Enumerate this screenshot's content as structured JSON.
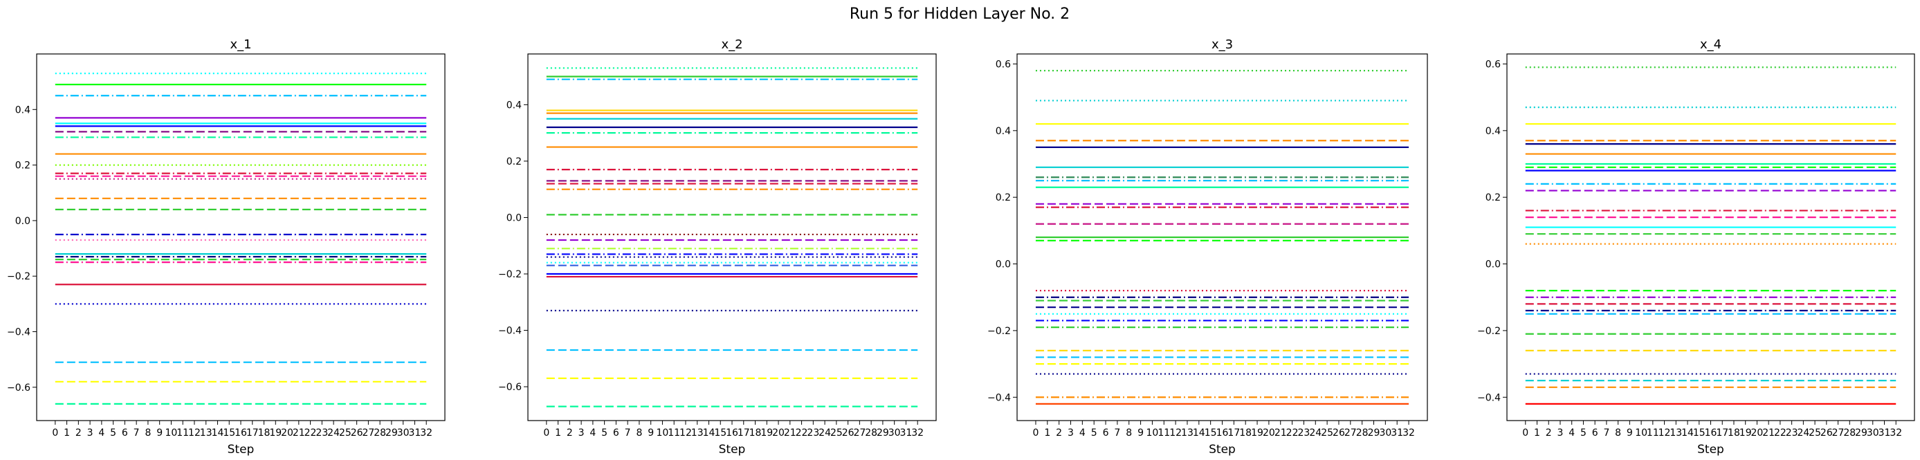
{
  "figure": {
    "title": "Run 5 for Hidden Layer No. 2"
  },
  "chart_data": [
    {
      "type": "line",
      "title": "x_1",
      "xlabel": "Step",
      "ylabel": "",
      "x": [
        0,
        1,
        2,
        3,
        4,
        5,
        6,
        7,
        8,
        9,
        10,
        11,
        12,
        13,
        14,
        15,
        16,
        17,
        18,
        19,
        20,
        21,
        22,
        23,
        24,
        25,
        26,
        27,
        28,
        29,
        30,
        31,
        32
      ],
      "xlim": [
        -1.6,
        33.6
      ],
      "ylim": [
        -0.72,
        0.6
      ],
      "yticks": [
        -0.6,
        -0.4,
        -0.2,
        0.0,
        0.2,
        0.4
      ],
      "ytick_labels": [
        "−0.6",
        "−0.4",
        "−0.2",
        "0.0",
        "0.2",
        "0.4"
      ],
      "grid": false,
      "series": [
        {
          "value": 0.53,
          "color": "#00ffff",
          "style": "dotted"
        },
        {
          "value": 0.49,
          "color": "#00ff00",
          "style": "solid"
        },
        {
          "value": 0.45,
          "color": "#00bfff",
          "style": "dashdot"
        },
        {
          "value": 0.37,
          "color": "#9400d3",
          "style": "solid"
        },
        {
          "value": 0.35,
          "color": "#00ffff",
          "style": "solid"
        },
        {
          "value": 0.34,
          "color": "#0000ff",
          "style": "solid"
        },
        {
          "value": 0.32,
          "color": "#800080",
          "style": "dashed"
        },
        {
          "value": 0.3,
          "color": "#00fa9a",
          "style": "dashdot"
        },
        {
          "value": 0.24,
          "color": "#ff8c00",
          "style": "solid"
        },
        {
          "value": 0.2,
          "color": "#7cfc00",
          "style": "dotted"
        },
        {
          "value": 0.17,
          "color": "#dc143c",
          "style": "dashdot"
        },
        {
          "value": 0.16,
          "color": "#ff1493",
          "style": "dashed"
        },
        {
          "value": 0.15,
          "color": "#c71585",
          "style": "dotted"
        },
        {
          "value": 0.08,
          "color": "#ff8c00",
          "style": "dashed"
        },
        {
          "value": 0.04,
          "color": "#32cd32",
          "style": "dashed"
        },
        {
          "value": -0.05,
          "color": "#0000cd",
          "style": "dashdot"
        },
        {
          "value": -0.07,
          "color": "#ff69b4",
          "style": "dotted"
        },
        {
          "value": -0.12,
          "color": "#00ced1",
          "style": "solid"
        },
        {
          "value": -0.13,
          "color": "#000080",
          "style": "dashdot"
        },
        {
          "value": -0.14,
          "color": "#32cd32",
          "style": "dashed"
        },
        {
          "value": -0.15,
          "color": "#ff1493",
          "style": "dashdot"
        },
        {
          "value": -0.23,
          "color": "#dc143c",
          "style": "solid"
        },
        {
          "value": -0.3,
          "color": "#0000cd",
          "style": "dotted"
        },
        {
          "value": -0.51,
          "color": "#00bfff",
          "style": "dashed"
        },
        {
          "value": -0.58,
          "color": "#ffff00",
          "style": "dashed"
        },
        {
          "value": -0.66,
          "color": "#00fa9a",
          "style": "dashed"
        }
      ]
    },
    {
      "type": "line",
      "title": "x_2",
      "xlabel": "Step",
      "ylabel": "",
      "x": [
        0,
        1,
        2,
        3,
        4,
        5,
        6,
        7,
        8,
        9,
        10,
        11,
        12,
        13,
        14,
        15,
        16,
        17,
        18,
        19,
        20,
        21,
        22,
        23,
        24,
        25,
        26,
        27,
        28,
        29,
        30,
        31,
        32
      ],
      "xlim": [
        -1.6,
        33.6
      ],
      "ylim": [
        -0.72,
        0.58
      ],
      "yticks": [
        -0.6,
        -0.4,
        -0.2,
        0.0,
        0.2,
        0.4
      ],
      "ytick_labels": [
        "−0.6",
        "−0.4",
        "−0.2",
        "0.0",
        "0.2",
        "0.4"
      ],
      "grid": false,
      "series": [
        {
          "value": 0.53,
          "color": "#00fa9a",
          "style": "dotted"
        },
        {
          "value": 0.5,
          "color": "#32cd32",
          "style": "solid"
        },
        {
          "value": 0.49,
          "color": "#00bfff",
          "style": "dashdot"
        },
        {
          "value": 0.38,
          "color": "#ffd700",
          "style": "solid"
        },
        {
          "value": 0.37,
          "color": "#ff8c00",
          "style": "solid"
        },
        {
          "value": 0.35,
          "color": "#00ced1",
          "style": "solid"
        },
        {
          "value": 0.32,
          "color": "#00008b",
          "style": "solid"
        },
        {
          "value": 0.3,
          "color": "#00fa9a",
          "style": "dashdot"
        },
        {
          "value": 0.25,
          "color": "#ff8c00",
          "style": "solid"
        },
        {
          "value": 0.17,
          "color": "#dc143c",
          "style": "dashdot"
        },
        {
          "value": 0.13,
          "color": "#800080",
          "style": "dashed"
        },
        {
          "value": 0.12,
          "color": "#dc143c",
          "style": "dashed"
        },
        {
          "value": 0.1,
          "color": "#ff8c00",
          "style": "dashdot"
        },
        {
          "value": 0.01,
          "color": "#32cd32",
          "style": "dashed"
        },
        {
          "value": -0.06,
          "color": "#800000",
          "style": "dotted"
        },
        {
          "value": -0.08,
          "color": "#9400d3",
          "style": "dashed"
        },
        {
          "value": -0.11,
          "color": "#adff2f",
          "style": "dashdot"
        },
        {
          "value": -0.13,
          "color": "#0000ff",
          "style": "dashdot"
        },
        {
          "value": -0.14,
          "color": "#00008b",
          "style": "dotted"
        },
        {
          "value": -0.16,
          "color": "#00ffff",
          "style": "dotted"
        },
        {
          "value": -0.17,
          "color": "#4169e1",
          "style": "dashed"
        },
        {
          "value": -0.2,
          "color": "#0000ff",
          "style": "solid"
        },
        {
          "value": -0.21,
          "color": "#dc143c",
          "style": "solid"
        },
        {
          "value": -0.33,
          "color": "#00008b",
          "style": "dotted"
        },
        {
          "value": -0.47,
          "color": "#00bfff",
          "style": "dashed"
        },
        {
          "value": -0.57,
          "color": "#ffff00",
          "style": "dashed"
        },
        {
          "value": -0.67,
          "color": "#00fa9a",
          "style": "dashed"
        }
      ]
    },
    {
      "type": "line",
      "title": "x_3",
      "xlabel": "Step",
      "ylabel": "",
      "x": [
        0,
        1,
        2,
        3,
        4,
        5,
        6,
        7,
        8,
        9,
        10,
        11,
        12,
        13,
        14,
        15,
        16,
        17,
        18,
        19,
        20,
        21,
        22,
        23,
        24,
        25,
        26,
        27,
        28,
        29,
        30,
        31,
        32
      ],
      "xlim": [
        -1.6,
        33.6
      ],
      "ylim": [
        -0.47,
        0.63
      ],
      "yticks": [
        -0.4,
        -0.2,
        0.0,
        0.2,
        0.4,
        0.6
      ],
      "ytick_labels": [
        "−0.4",
        "−0.2",
        "0.0",
        "0.2",
        "0.4",
        "0.6"
      ],
      "grid": false,
      "series": [
        {
          "value": 0.58,
          "color": "#32cd32",
          "style": "dotted"
        },
        {
          "value": 0.49,
          "color": "#00ced1",
          "style": "dotted"
        },
        {
          "value": 0.42,
          "color": "#ffff00",
          "style": "solid"
        },
        {
          "value": 0.37,
          "color": "#ff8c00",
          "style": "dashed"
        },
        {
          "value": 0.35,
          "color": "#00008b",
          "style": "solid"
        },
        {
          "value": 0.29,
          "color": "#00ced1",
          "style": "solid"
        },
        {
          "value": 0.26,
          "color": "#2e8b57",
          "style": "dashdot"
        },
        {
          "value": 0.25,
          "color": "#00bfff",
          "style": "dashdot"
        },
        {
          "value": 0.23,
          "color": "#00fa9a",
          "style": "solid"
        },
        {
          "value": 0.18,
          "color": "#9400d3",
          "style": "dashed"
        },
        {
          "value": 0.17,
          "color": "#dc143c",
          "style": "dashdot"
        },
        {
          "value": 0.12,
          "color": "#c71585",
          "style": "dashed"
        },
        {
          "value": 0.08,
          "color": "#32cd32",
          "style": "solid"
        },
        {
          "value": 0.07,
          "color": "#00ff00",
          "style": "dashed"
        },
        {
          "value": -0.08,
          "color": "#dc143c",
          "style": "dotted"
        },
        {
          "value": -0.1,
          "color": "#000080",
          "style": "dashdot"
        },
        {
          "value": -0.11,
          "color": "#32cd32",
          "style": "dashed"
        },
        {
          "value": -0.13,
          "color": "#00008b",
          "style": "dashed"
        },
        {
          "value": -0.15,
          "color": "#00ffff",
          "style": "dotted"
        },
        {
          "value": -0.17,
          "color": "#0000ff",
          "style": "dashdot"
        },
        {
          "value": -0.19,
          "color": "#32cd32",
          "style": "dashdot"
        },
        {
          "value": -0.26,
          "color": "#ffd700",
          "style": "dashed"
        },
        {
          "value": -0.28,
          "color": "#00bfff",
          "style": "dashed"
        },
        {
          "value": -0.3,
          "color": "#ffff00",
          "style": "dashed"
        },
        {
          "value": -0.33,
          "color": "#00008b",
          "style": "dotted"
        },
        {
          "value": -0.4,
          "color": "#ff8c00",
          "style": "dashdot"
        },
        {
          "value": -0.42,
          "color": "#ff4500",
          "style": "solid"
        }
      ]
    },
    {
      "type": "line",
      "title": "x_4",
      "xlabel": "Step",
      "ylabel": "",
      "x": [
        0,
        1,
        2,
        3,
        4,
        5,
        6,
        7,
        8,
        9,
        10,
        11,
        12,
        13,
        14,
        15,
        16,
        17,
        18,
        19,
        20,
        21,
        22,
        23,
        24,
        25,
        26,
        27,
        28,
        29,
        30,
        31,
        32
      ],
      "xlim": [
        -1.6,
        33.6
      ],
      "ylim": [
        -0.47,
        0.63
      ],
      "yticks": [
        -0.4,
        -0.2,
        0.0,
        0.2,
        0.4,
        0.6
      ],
      "ytick_labels": [
        "−0.4",
        "−0.2",
        "0.0",
        "0.2",
        "0.4",
        "0.6"
      ],
      "grid": false,
      "series": [
        {
          "value": 0.59,
          "color": "#32cd32",
          "style": "dotted"
        },
        {
          "value": 0.47,
          "color": "#00ced1",
          "style": "dotted"
        },
        {
          "value": 0.42,
          "color": "#ffff00",
          "style": "solid"
        },
        {
          "value": 0.37,
          "color": "#ff8c00",
          "style": "dashed"
        },
        {
          "value": 0.36,
          "color": "#00008b",
          "style": "solid"
        },
        {
          "value": 0.33,
          "color": "#ff8c00",
          "style": "solid"
        },
        {
          "value": 0.3,
          "color": "#00fa9a",
          "style": "solid"
        },
        {
          "value": 0.29,
          "color": "#00ff00",
          "style": "dashed"
        },
        {
          "value": 0.28,
          "color": "#0000ff",
          "style": "solid"
        },
        {
          "value": 0.24,
          "color": "#00bfff",
          "style": "dashdot"
        },
        {
          "value": 0.22,
          "color": "#9400d3",
          "style": "dashed"
        },
        {
          "value": 0.16,
          "color": "#dc143c",
          "style": "dashdot"
        },
        {
          "value": 0.14,
          "color": "#ff1493",
          "style": "dashed"
        },
        {
          "value": 0.11,
          "color": "#00ffff",
          "style": "solid"
        },
        {
          "value": 0.09,
          "color": "#32cd32",
          "style": "dashed"
        },
        {
          "value": 0.06,
          "color": "#ff8c00",
          "style": "dotted"
        },
        {
          "value": -0.08,
          "color": "#00ff00",
          "style": "dashed"
        },
        {
          "value": -0.1,
          "color": "#9400d3",
          "style": "dashdot"
        },
        {
          "value": -0.12,
          "color": "#dc143c",
          "style": "dashed"
        },
        {
          "value": -0.14,
          "color": "#00008b",
          "style": "dashdot"
        },
        {
          "value": -0.15,
          "color": "#00bfff",
          "style": "dashed"
        },
        {
          "value": -0.21,
          "color": "#32cd32",
          "style": "dashed"
        },
        {
          "value": -0.26,
          "color": "#ffd700",
          "style": "dashed"
        },
        {
          "value": -0.33,
          "color": "#00008b",
          "style": "dotted"
        },
        {
          "value": -0.35,
          "color": "#00ced1",
          "style": "dashed"
        },
        {
          "value": -0.37,
          "color": "#ff8c00",
          "style": "dashed"
        },
        {
          "value": -0.42,
          "color": "#ff0000",
          "style": "solid"
        }
      ]
    }
  ]
}
